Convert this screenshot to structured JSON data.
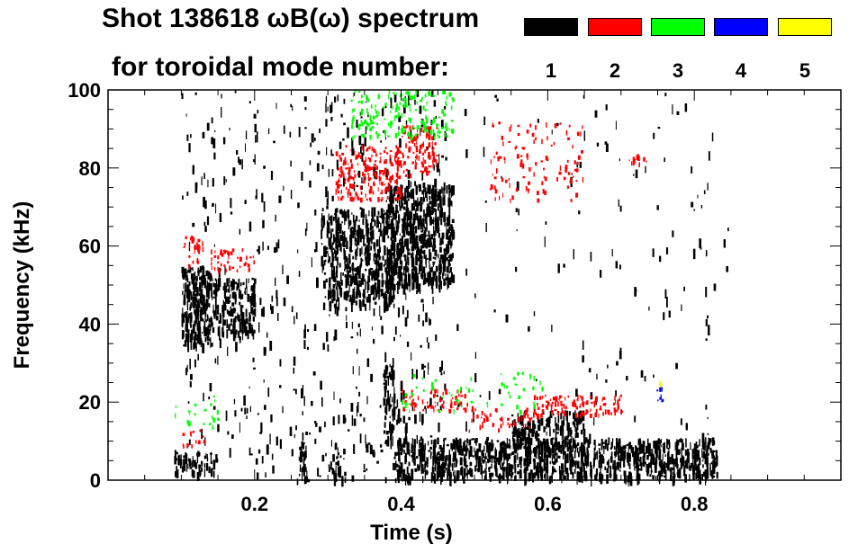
{
  "chart_data": {
    "type": "spectrogram",
    "title_line1": "Shot 138618 ωB(ω) spectrum",
    "title_line2": "for toroidal mode number:",
    "xlabel": "Time (s)",
    "ylabel": "Frequency (kHz)",
    "xlim": [
      0.0,
      1.0
    ],
    "ylim": [
      0,
      100
    ],
    "xticks": [
      {
        "value": 0.2,
        "label": "0.2"
      },
      {
        "value": 0.4,
        "label": "0.4"
      },
      {
        "value": 0.6,
        "label": "0.6"
      },
      {
        "value": 0.8,
        "label": "0.8"
      }
    ],
    "yticks": [
      {
        "value": 0,
        "label": "0"
      },
      {
        "value": 20,
        "label": "20"
      },
      {
        "value": 40,
        "label": "40"
      },
      {
        "value": 60,
        "label": "60"
      },
      {
        "value": 80,
        "label": "80"
      },
      {
        "value": 100,
        "label": "100"
      }
    ],
    "legend": [
      {
        "label": "1",
        "color": "#000000"
      },
      {
        "label": "2",
        "color": "#ff0000"
      },
      {
        "label": "3",
        "color": "#00ff00"
      },
      {
        "label": "4",
        "color": "#0000ff"
      },
      {
        "label": "5",
        "color": "#ffff00"
      }
    ],
    "mode_regions": [
      {
        "mode": 1,
        "t": [
          0.1,
          0.14
        ],
        "f": [
          35,
          55
        ],
        "density": 0.85
      },
      {
        "mode": 1,
        "t": [
          0.14,
          0.2
        ],
        "f": [
          38,
          52
        ],
        "density": 0.6
      },
      {
        "mode": 1,
        "t": [
          0.09,
          0.15
        ],
        "f": [
          2,
          8
        ],
        "density": 0.5
      },
      {
        "mode": 1,
        "t": [
          0.1,
          0.3
        ],
        "f": [
          0,
          100
        ],
        "density": 0.04
      },
      {
        "mode": 1,
        "t": [
          0.26,
          0.27
        ],
        "f": [
          0,
          10
        ],
        "density": 0.9
      },
      {
        "mode": 1,
        "t": [
          0.3,
          0.32
        ],
        "f": [
          0,
          5
        ],
        "density": 0.6
      },
      {
        "mode": 1,
        "t": [
          0.29,
          0.39
        ],
        "f": [
          45,
          70
        ],
        "density": 0.55
      },
      {
        "mode": 1,
        "t": [
          0.38,
          0.47
        ],
        "f": [
          50,
          76
        ],
        "density": 0.8
      },
      {
        "mode": 1,
        "t": [
          0.3,
          0.46
        ],
        "f": [
          0,
          100
        ],
        "density": 0.06
      },
      {
        "mode": 1,
        "t": [
          0.375,
          0.39
        ],
        "f": [
          10,
          30
        ],
        "density": 0.7
      },
      {
        "mode": 1,
        "t": [
          0.39,
          0.83
        ],
        "f": [
          1,
          11
        ],
        "density": 0.75
      },
      {
        "mode": 1,
        "t": [
          0.55,
          0.65
        ],
        "f": [
          8,
          18
        ],
        "density": 0.5
      },
      {
        "mode": 1,
        "t": [
          0.47,
          0.85
        ],
        "f": [
          10,
          100
        ],
        "density": 0.012
      },
      {
        "mode": 2,
        "t": [
          0.1,
          0.13
        ],
        "f": [
          55,
          63
        ],
        "density": 0.35
      },
      {
        "mode": 2,
        "t": [
          0.14,
          0.2
        ],
        "f": [
          54,
          60
        ],
        "density": 0.35
      },
      {
        "mode": 2,
        "t": [
          0.1,
          0.13
        ],
        "f": [
          9,
          13
        ],
        "density": 0.35
      },
      {
        "mode": 2,
        "t": [
          0.31,
          0.4
        ],
        "f": [
          72,
          86
        ],
        "density": 0.5
      },
      {
        "mode": 2,
        "t": [
          0.4,
          0.45
        ],
        "f": [
          78,
          91
        ],
        "density": 0.5
      },
      {
        "mode": 2,
        "t": [
          0.4,
          0.49
        ],
        "f": [
          18,
          24
        ],
        "density": 0.35
      },
      {
        "mode": 2,
        "t": [
          0.49,
          0.58
        ],
        "f": [
          13,
          19
        ],
        "density": 0.25
      },
      {
        "mode": 2,
        "t": [
          0.58,
          0.7
        ],
        "f": [
          17,
          22
        ],
        "density": 0.55
      },
      {
        "mode": 2,
        "t": [
          0.52,
          0.65
        ],
        "f": [
          72,
          92
        ],
        "density": 0.12
      },
      {
        "mode": 2,
        "t": [
          0.71,
          0.74
        ],
        "f": [
          81,
          84
        ],
        "density": 0.4
      },
      {
        "mode": 3,
        "t": [
          0.33,
          0.47
        ],
        "f": [
          88,
          100
        ],
        "density": 0.3
      },
      {
        "mode": 3,
        "t": [
          0.4,
          0.6
        ],
        "f": [
          18,
          28
        ],
        "density": 0.08
      },
      {
        "mode": 3,
        "t": [
          0.09,
          0.15
        ],
        "f": [
          14,
          22
        ],
        "density": 0.12
      },
      {
        "mode": 4,
        "t": [
          0.745,
          0.755
        ],
        "f": [
          20,
          24
        ],
        "density": 0.6
      },
      {
        "mode": 5,
        "t": [
          0.746,
          0.754
        ],
        "f": [
          24,
          26
        ],
        "density": 0.4
      }
    ]
  }
}
